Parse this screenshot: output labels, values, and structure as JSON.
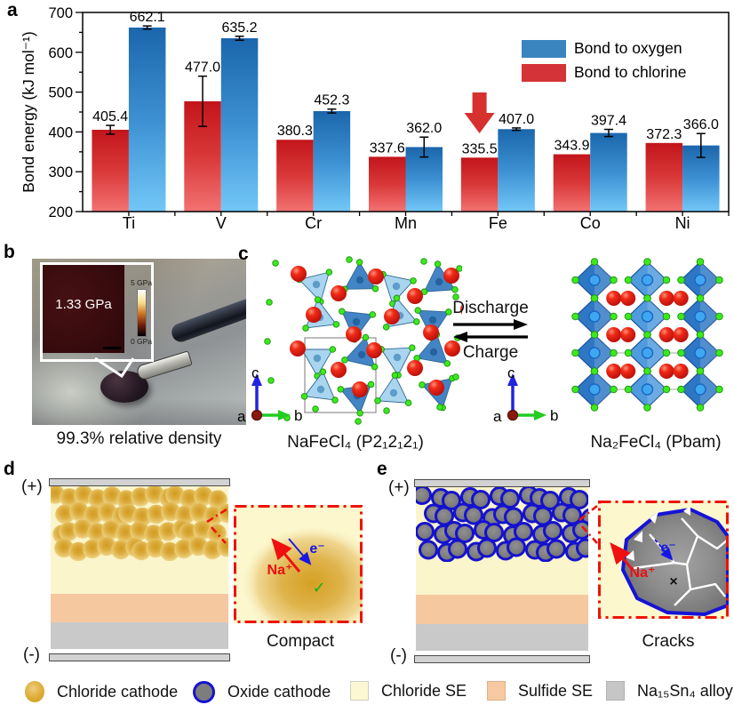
{
  "figure": {
    "panel_labels": {
      "a": "a",
      "b": "b",
      "c": "c",
      "d": "d",
      "e": "e"
    }
  },
  "chart_data": {
    "type": "grouped-bar",
    "categories": [
      "Ti",
      "V",
      "Cr",
      "Mn",
      "Fe",
      "Co",
      "Ni"
    ],
    "series": [
      {
        "name": "Bond to chlorine",
        "color": "#d43438",
        "values": [
          405.4,
          477.0,
          380.3,
          337.6,
          335.5,
          343.9,
          372.3
        ],
        "errors": [
          11,
          63,
          0,
          0,
          0,
          0,
          0
        ]
      },
      {
        "name": "Bond to oxygen",
        "color": "#3a85c0",
        "values": [
          662.1,
          635.2,
          452.3,
          362.0,
          407.0,
          397.4,
          366.0
        ],
        "errors": [
          4,
          5,
          5,
          25,
          3,
          9,
          30
        ]
      }
    ],
    "legend_order": [
      "Bond to oxygen",
      "Bond to chlorine"
    ],
    "ylabel": "Bond energy (kJ mol⁻¹)",
    "ylim": [
      200,
      700
    ],
    "ytick_major": 100,
    "ytick_minor": 50,
    "grid": false,
    "legend_position": "top-right",
    "annotation": {
      "shape": "red-down-arrow",
      "category": "Fe",
      "series": "Bond to chlorine"
    }
  },
  "panel_b": {
    "inset_value": "1.33 GPa",
    "colorbar_top": "5 GPa",
    "colorbar_bottom": "0 GPa",
    "caption": "99.3% relative density"
  },
  "panel_c": {
    "left_structure": "NaFeCl₄ (P2₁2₁2₁)",
    "right_structure": "Na₂FeCl₄ (Pbam)",
    "arrow_forward": "Discharge",
    "arrow_backward": "Charge",
    "axis": {
      "a": "a",
      "b": "b",
      "c": "c"
    }
  },
  "panel_d": {
    "positive": "(+)",
    "negative": "(-)",
    "ion": "Na⁺",
    "electron": "e⁻",
    "check": "✓",
    "caption": "Compact"
  },
  "panel_e": {
    "positive": "(+)",
    "negative": "(-)",
    "ion": "Na⁺",
    "electron": "e⁻",
    "cross": "×",
    "caption": "Cracks"
  },
  "legend": {
    "items": [
      {
        "label": "Chloride cathode"
      },
      {
        "label": "Oxide cathode"
      },
      {
        "label": "Chloride SE"
      },
      {
        "label": "Sulfide SE"
      },
      {
        "label": "Na₁₅Sn₄ alloy"
      }
    ]
  },
  "colors": {
    "chlorine_bar": "#d43438",
    "oxygen_bar": "#3a85c0",
    "annotation_arrow": "#d6312f",
    "chloride_cathode": "#d9a62e",
    "oxide_cathode": "#7d7d7d",
    "oxide_ring": "#1512cf",
    "chloride_se": "#fbf5cb",
    "sulfide_se": "#f6c8a0",
    "alloy_layer": "#c9c9c9",
    "electrode": "#d2d2d2",
    "inset_border": "#ee1208",
    "cl_atom": "#3ee81e",
    "na_atom": "#ef2a16",
    "fe_polyhedron": "#2e77c4"
  }
}
